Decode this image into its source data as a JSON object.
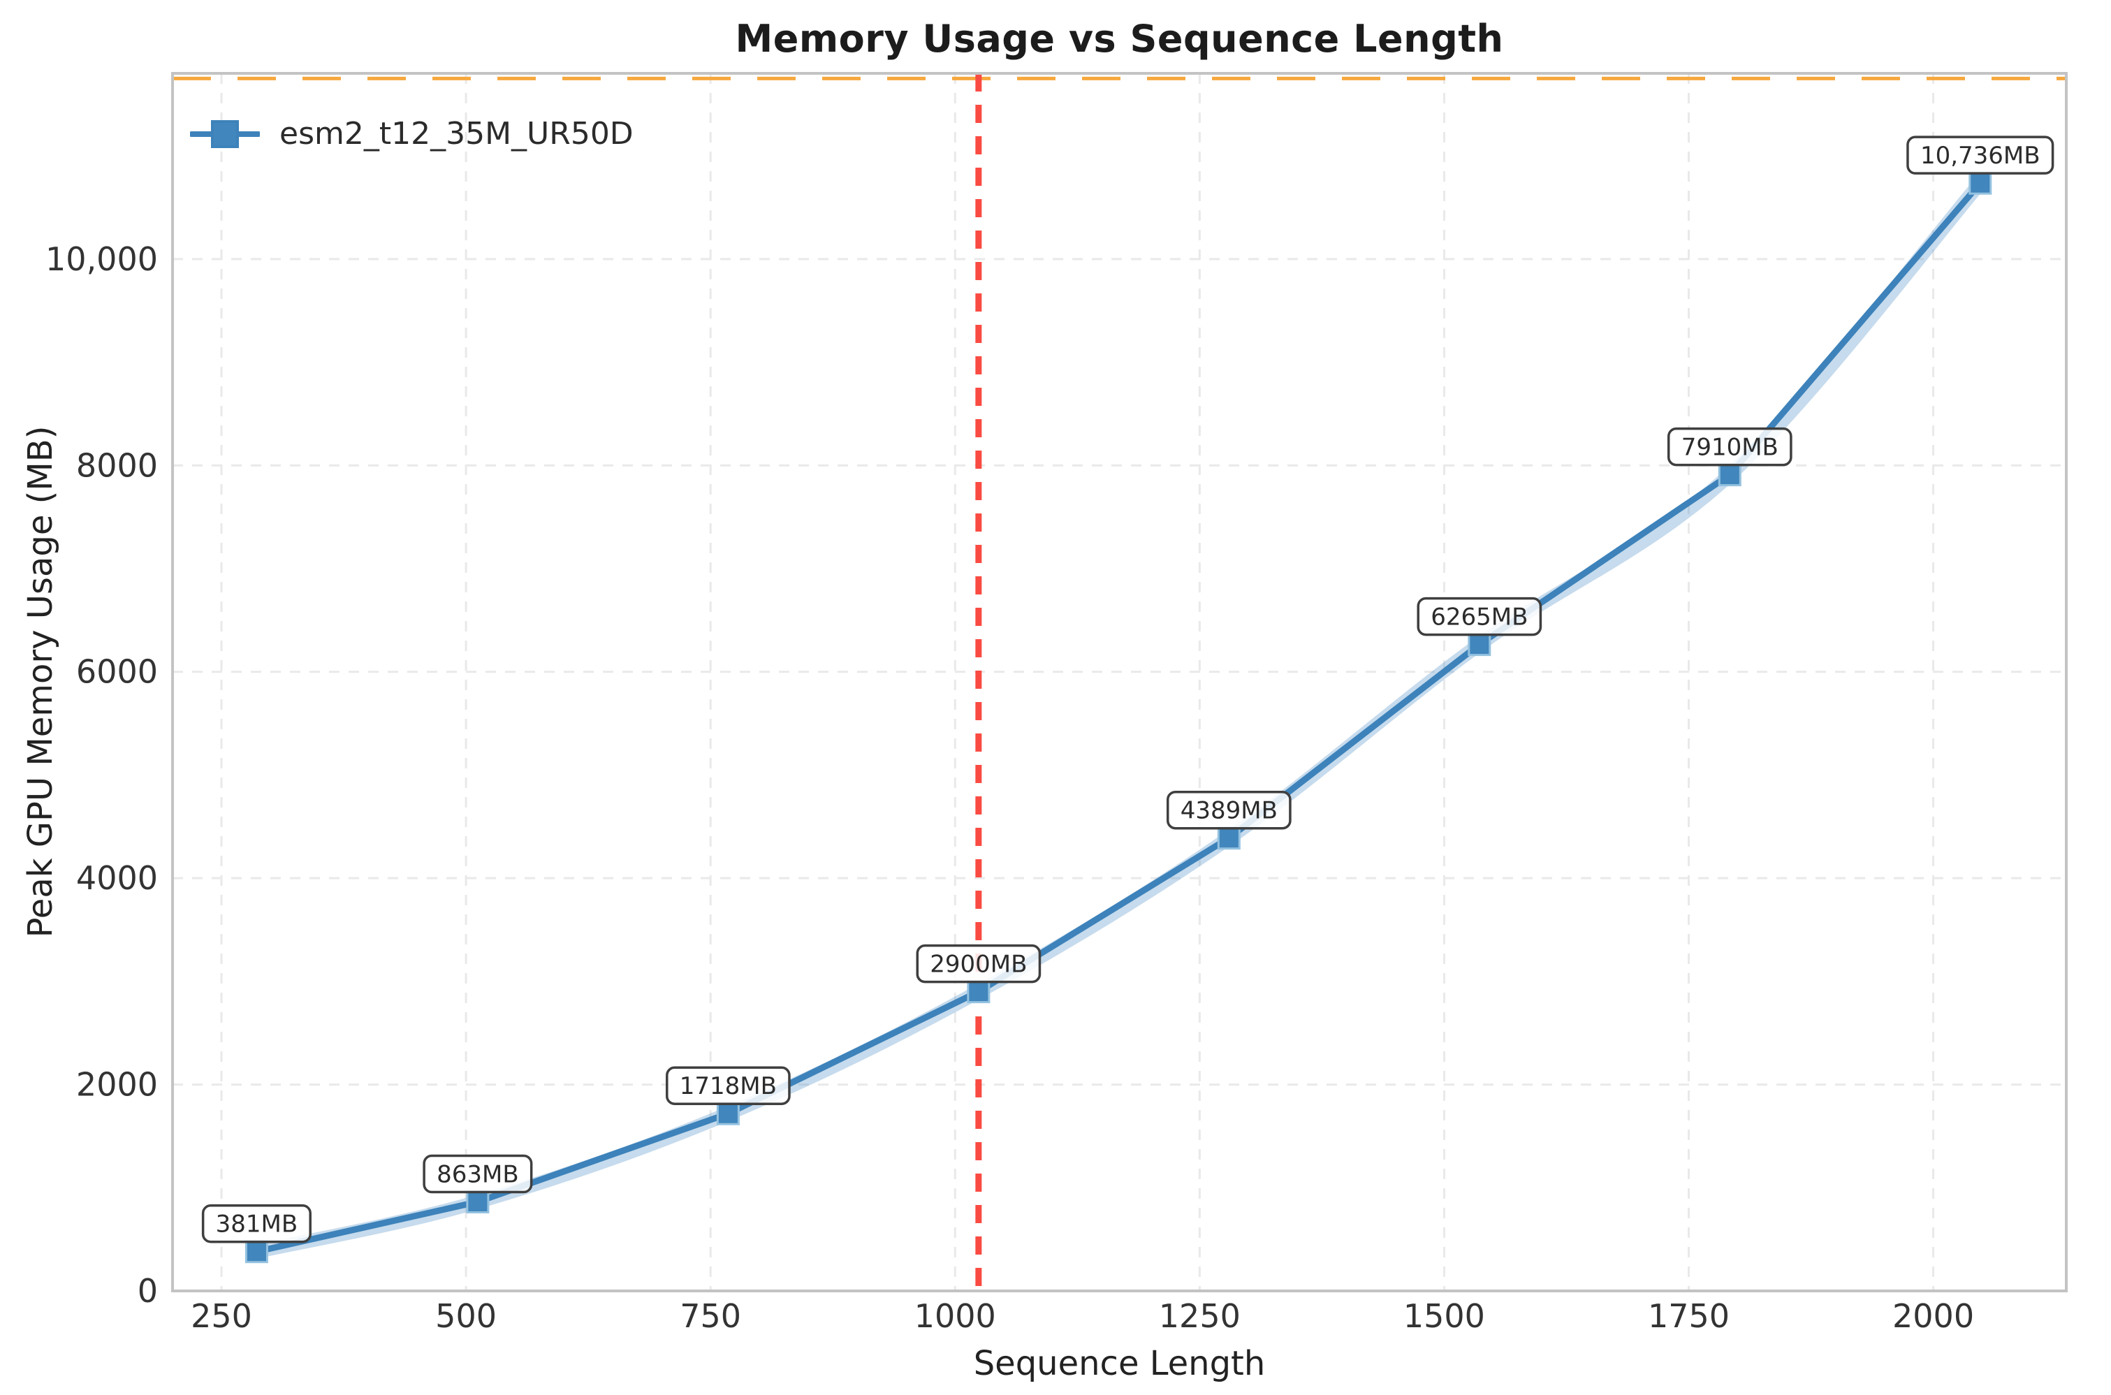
{
  "chart_data": {
    "type": "line",
    "title": "Memory Usage vs Sequence Length",
    "xlabel": "Sequence Length",
    "ylabel": "Peak GPU Memory Usage (MB)",
    "xlim": [
      200,
      2136
    ],
    "ylim": [
      0,
      11800
    ],
    "xticks": [
      250,
      500,
      750,
      1000,
      1250,
      1500,
      1750,
      2000
    ],
    "xtick_labels": [
      "250",
      "500",
      "750",
      "1000",
      "1250",
      "1500",
      "1750",
      "2000"
    ],
    "yticks": [
      0,
      2000,
      4000,
      6000,
      8000,
      10000
    ],
    "ytick_labels": [
      "0",
      "2000",
      "4000",
      "6000",
      "8000",
      "10,000"
    ],
    "grid": true,
    "grid_style": "dashed",
    "legend_position": "upper-left",
    "series": [
      {
        "name": "esm2_t12_35M_UR50D",
        "x": [
          286,
          512,
          768,
          1024,
          1280,
          1536,
          1792,
          2048
        ],
        "y": [
          381,
          863,
          1718,
          2900,
          4389,
          6265,
          7910,
          10736
        ],
        "point_labels": [
          "381MB",
          "863MB",
          "1718MB",
          "2900MB",
          "4389MB",
          "6265MB",
          "7910MB",
          "10,736MB"
        ],
        "color": "#3d82ba",
        "marker": "square"
      }
    ],
    "reference_lines": {
      "vline": {
        "x": 1024,
        "color": "#fa4b42",
        "style": "dashed"
      },
      "hline": {
        "y": 11750,
        "color": "#f6a83e",
        "style": "dashed"
      }
    },
    "colors": {
      "line": "#3d82ba",
      "band": "rgba(77, 143, 198, 0.32)",
      "marker_fill": "#4186bc",
      "marker_edge": "#94c2e0",
      "vline": "#fa4b42",
      "hline": "#f6a83e",
      "grid": "#e9e9e9",
      "spine": "#c3c3c3",
      "tick_text": "#333333",
      "annotation_border": "#3f3f3f",
      "annotation_bg": "rgba(255,255,255,0.85)",
      "annotation_text": "#2b2b2b"
    }
  }
}
